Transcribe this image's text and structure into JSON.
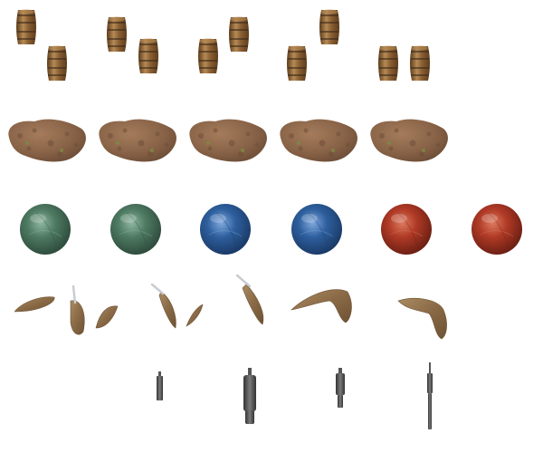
{
  "sprite_sheet": {
    "background": "#ffffff",
    "rows": [
      {
        "name": "barrel-row",
        "sprite": "barrel",
        "colors": {
          "wood_dark": "#5e3d1c",
          "wood_mid": "#8a5f33",
          "wood_light": "#b58a55",
          "band": "#3b2a1a"
        }
      },
      {
        "name": "rock-row",
        "sprite": "rock",
        "colors": {
          "base": "#8a6448",
          "dark": "#6e4e38",
          "light": "#a47c5c",
          "moss": "#7a8a40"
        }
      },
      {
        "name": "orb-row",
        "sprite": "orb",
        "variants": [
          {
            "color": "green",
            "base": "#4e7a62",
            "light": "#8fb5a0",
            "dark": "#2f4d3e"
          },
          {
            "color": "green",
            "base": "#4e7a62",
            "light": "#8fb5a0",
            "dark": "#2f4d3e"
          },
          {
            "color": "blue",
            "base": "#2e5f9e",
            "light": "#7fa8dc",
            "dark": "#1b3b68"
          },
          {
            "color": "blue",
            "base": "#2e5f9e",
            "light": "#7fa8dc",
            "dark": "#1b3b68"
          },
          {
            "color": "red",
            "base": "#b03a26",
            "light": "#dc7a5e",
            "dark": "#6e2014"
          },
          {
            "color": "red",
            "base": "#b03a26",
            "light": "#dc7a5e",
            "dark": "#6e2014"
          }
        ]
      },
      {
        "name": "debris-row",
        "sprite": "debris",
        "colors": {
          "base": "#8a6a46",
          "dark": "#6d5234",
          "light": "#a98b62",
          "blade": "#c9ccd0"
        }
      },
      {
        "name": "tool-row",
        "sprite": "tool",
        "colors": {
          "dark": "#333333",
          "mid": "#555555",
          "light": "#7a7a7a"
        }
      }
    ]
  }
}
